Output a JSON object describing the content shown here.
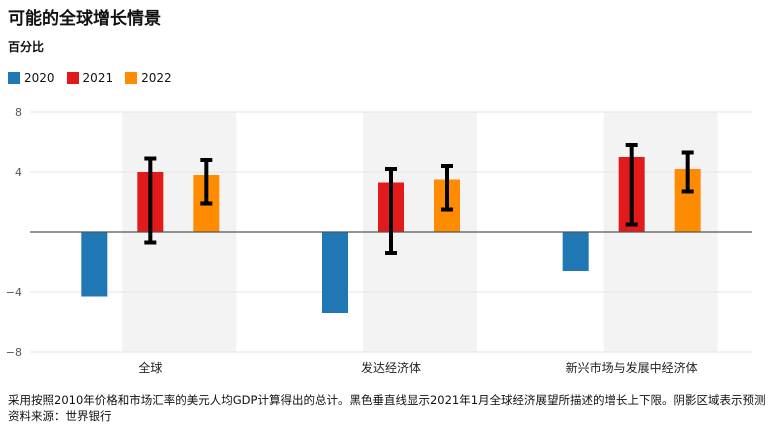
{
  "chart_data": {
    "type": "bar",
    "title": "可能的全球增长情景",
    "subtitle": "百分比",
    "categories": [
      "全球",
      "发达经济体",
      "新兴市场与发展中经济体"
    ],
    "series": [
      {
        "name": "2020",
        "color": "#1f77b4",
        "values": [
          -4.3,
          -5.4,
          -2.6
        ]
      },
      {
        "name": "2021",
        "color": "#e31a1c",
        "values": [
          4.0,
          3.3,
          5.0
        ],
        "error_low": [
          -0.7,
          -1.4,
          0.5
        ],
        "error_high": [
          4.9,
          4.2,
          5.8
        ]
      },
      {
        "name": "2022",
        "color": "#ff8c00",
        "values": [
          3.8,
          3.5,
          4.2
        ],
        "error_low": [
          1.9,
          1.5,
          2.7
        ],
        "error_high": [
          4.8,
          4.4,
          5.3
        ]
      }
    ],
    "ylim": [
      -8,
      8
    ],
    "yticks": [
      {
        "v": 8,
        "label": "8"
      },
      {
        "v": 4,
        "label": "4"
      },
      {
        "v": -4,
        "label": "−4"
      },
      {
        "v": -8,
        "label": "−8"
      }
    ],
    "legend_position": "top-left",
    "grid": true,
    "shaded_regions": "2021-2022 projections",
    "footnote": "采用按照2010年价格和市场汇率的美元人均GDP计算得出的总计。黑色垂直线显示2021年1月全球经济展望所描述的增长上下限。阴影区域表示预测",
    "source": "资料来源：世界银行"
  }
}
